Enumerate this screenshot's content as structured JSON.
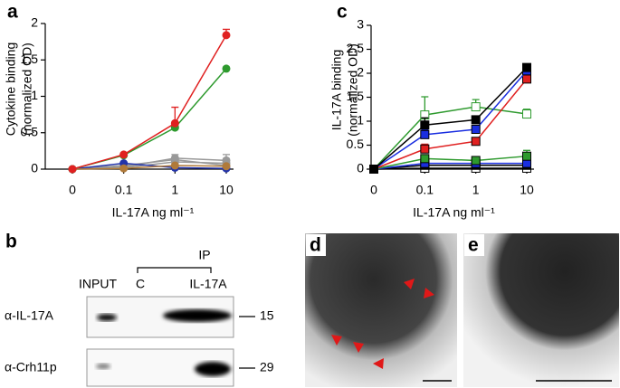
{
  "chart_data": [
    {
      "type": "line",
      "panel": "a",
      "marker": "circle",
      "y_label": [
        "Cytokine binding",
        "(normalized OD)"
      ],
      "x_label": "IL-17A ng ml⁻¹",
      "categories": [
        "0",
        "0.1",
        "1",
        "10"
      ],
      "ylim": [
        0,
        2
      ],
      "yticks": [
        0,
        0.5,
        1,
        1.5,
        2
      ],
      "series": [
        {
          "color": "#999999",
          "values": [
            0,
            0.03,
            0.15,
            0.12
          ],
          "errors": [
            null,
            0.02,
            0.05,
            0.08
          ]
        },
        {
          "color": "#999999",
          "values": [
            0,
            0.02,
            0.1,
            0.08
          ],
          "errors": [
            null,
            null,
            0.03,
            0.03
          ]
        },
        {
          "color": "#999999",
          "values": [
            0,
            0.05,
            0.13,
            0.05
          ],
          "errors": [
            null,
            0.02,
            0.02,
            0.02
          ]
        },
        {
          "color": "#2233aa",
          "values": [
            0,
            0.08,
            0.02,
            0.01
          ],
          "errors": [
            null,
            null,
            null,
            null
          ]
        },
        {
          "color": "#b07a3a",
          "values": [
            0,
            0.01,
            0.05,
            0.04
          ],
          "errors": [
            null,
            null,
            null,
            null
          ]
        },
        {
          "color": "#2e9a2e",
          "values": [
            0,
            0.19,
            0.57,
            1.38
          ],
          "errors": [
            null,
            0.02,
            0.03,
            0.02
          ]
        },
        {
          "color": "#e02020",
          "values": [
            0,
            0.2,
            0.63,
            1.84
          ],
          "errors": [
            null,
            0.02,
            0.22,
            0.08
          ]
        }
      ]
    },
    {
      "type": "line",
      "panel": "c",
      "marker": "square",
      "y_label": [
        "IL-17A binding",
        "(normalized OD)"
      ],
      "x_label": "IL-17A ng ml⁻¹",
      "categories": [
        "0",
        "0.1",
        "1",
        "10"
      ],
      "ylim": [
        0,
        3
      ],
      "yticks": [
        0,
        0.5,
        1,
        1.5,
        2,
        2.5,
        3
      ],
      "series": [
        {
          "color": "#000000",
          "filled": false,
          "values": [
            0,
            0.02,
            0.02,
            0.02
          ],
          "errors": [
            null,
            null,
            null,
            null
          ]
        },
        {
          "color": "#000000",
          "filled": true,
          "values": [
            0,
            0.08,
            0.08,
            0.08
          ],
          "errors": [
            null,
            null,
            null,
            null
          ]
        },
        {
          "color": "#1a2ee0",
          "filled": true,
          "values": [
            0,
            0.12,
            0.12,
            0.12
          ],
          "errors": [
            null,
            null,
            null,
            null
          ]
        },
        {
          "color": "#2e9a2e",
          "filled": true,
          "values": [
            0,
            0.22,
            0.18,
            0.27
          ],
          "errors": [
            null,
            0.08,
            null,
            0.12
          ]
        },
        {
          "color": "#2e9a2e",
          "filled": false,
          "values": [
            0,
            1.13,
            1.3,
            1.15
          ],
          "errors": [
            null,
            0.38,
            0.15,
            0.1
          ]
        },
        {
          "color": "#e02020",
          "filled": true,
          "values": [
            0,
            0.42,
            0.58,
            1.88
          ],
          "errors": [
            null,
            0.1,
            0.05,
            0.04
          ]
        },
        {
          "color": "#1a2ee0",
          "filled": true,
          "values": [
            0,
            0.72,
            0.83,
            2.05
          ],
          "errors": [
            null,
            0.1,
            0.06,
            0.04
          ]
        },
        {
          "color": "#000000",
          "filled": true,
          "values": [
            0,
            0.92,
            1.03,
            2.12
          ],
          "errors": [
            null,
            0.15,
            0.08,
            0.04
          ]
        }
      ]
    }
  ],
  "panel_b": {
    "label": "b",
    "ip": "IP",
    "lanes": [
      "INPUT",
      "C",
      "IL-17A"
    ],
    "blots": [
      {
        "antibody": "α-IL-17A",
        "size": "15"
      },
      {
        "antibody": "α-Crh11p",
        "size": "29"
      }
    ]
  },
  "panel_d": {
    "label": "d"
  },
  "panel_e": {
    "label": "e"
  }
}
